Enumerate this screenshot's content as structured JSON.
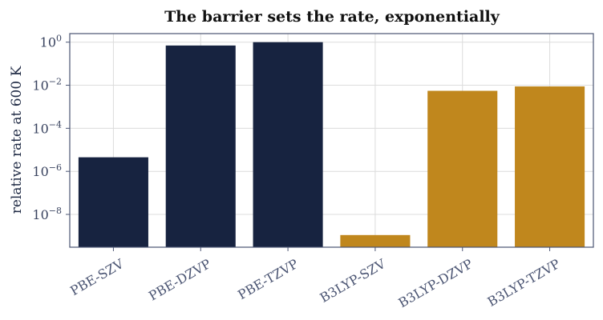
{
  "chart_data": {
    "type": "bar",
    "title": "The barrier sets the rate, exponentially",
    "xlabel": "",
    "ylabel": "relative rate at 600 K",
    "yscale": "log",
    "ylim": [
      3e-10,
      2.5
    ],
    "yticks": [
      {
        "value": 1,
        "base": "10",
        "exp": "0"
      },
      {
        "value": 0.01,
        "base": "10",
        "exp": "−2"
      },
      {
        "value": 0.0001,
        "base": "10",
        "exp": "−4"
      },
      {
        "value": 1e-06,
        "base": "10",
        "exp": "−6"
      },
      {
        "value": 1e-08,
        "base": "10",
        "exp": "−8"
      }
    ],
    "grid": true,
    "categories": [
      "PBE-SZV",
      "PBE-DZVP",
      "PBE-TZVP",
      "B3LYP-SZV",
      "B3LYP-DZVP",
      "B3LYP-TZVP"
    ],
    "values": [
      4.5e-06,
      0.7,
      1.0,
      1.1e-09,
      0.0055,
      0.0088
    ],
    "bar_colors": [
      "#172340",
      "#172340",
      "#172340",
      "#c0871d",
      "#c0871d",
      "#c0871d"
    ]
  }
}
